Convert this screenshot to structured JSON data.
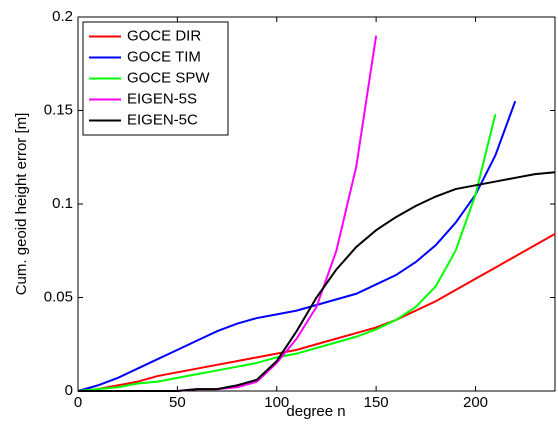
{
  "chart_data": {
    "type": "line",
    "xlabel": "degree n",
    "ylabel": "Cum. geoid height error [m]",
    "x": [
      0,
      10,
      20,
      30,
      40,
      50,
      60,
      70,
      80,
      90,
      100,
      110,
      120,
      130,
      140,
      150,
      160,
      170,
      180,
      190,
      200,
      210,
      220,
      230,
      240
    ],
    "xlim": [
      0,
      240
    ],
    "xticks": [
      0,
      50,
      100,
      150,
      200
    ],
    "ylim": [
      0,
      0.2
    ],
    "yticks": [
      0,
      0.05,
      0.1,
      0.15,
      0.2
    ],
    "grid": false,
    "legend": "upper left",
    "series": [
      {
        "name": "GOCE DIR",
        "color": "#ff0000",
        "values": [
          0,
          0.001,
          0.003,
          0.005,
          0.008,
          0.01,
          0.012,
          0.014,
          0.016,
          0.018,
          0.02,
          0.022,
          0.025,
          0.028,
          0.031,
          0.034,
          0.038,
          0.043,
          0.048,
          0.054,
          0.06,
          0.066,
          0.072,
          0.078,
          0.084
        ]
      },
      {
        "name": "GOCE TIM",
        "color": "#0000ff",
        "values": [
          0,
          0.003,
          0.007,
          0.012,
          0.017,
          0.022,
          0.027,
          0.032,
          0.036,
          0.039,
          0.041,
          0.043,
          0.046,
          0.049,
          0.052,
          0.057,
          0.062,
          0.069,
          0.078,
          0.09,
          0.105,
          0.126,
          0.155,
          null,
          null
        ]
      },
      {
        "name": "GOCE SPW",
        "color": "#00ff00",
        "values": [
          0,
          0.001,
          0.002,
          0.004,
          0.005,
          0.007,
          0.009,
          0.011,
          0.013,
          0.015,
          0.018,
          0.02,
          0.023,
          0.026,
          0.029,
          0.033,
          0.038,
          0.045,
          0.056,
          0.075,
          0.105,
          0.148,
          null,
          null,
          null
        ]
      },
      {
        "name": "EIGEN-5S",
        "color": "#ff00ff",
        "values": [
          0,
          0,
          0,
          0,
          0,
          0,
          0.001,
          0.001,
          0.002,
          0.005,
          0.015,
          0.028,
          0.045,
          0.075,
          0.12,
          0.19,
          null,
          null,
          null,
          null,
          null,
          null,
          null,
          null,
          null
        ]
      },
      {
        "name": "EIGEN-5C",
        "color": "#000000",
        "values": [
          0,
          0,
          0,
          0,
          0,
          0,
          0.001,
          0.001,
          0.003,
          0.006,
          0.016,
          0.032,
          0.05,
          0.065,
          0.077,
          0.086,
          0.093,
          0.099,
          0.104,
          0.108,
          0.11,
          0.112,
          0.114,
          0.116,
          0.117
        ]
      }
    ]
  }
}
